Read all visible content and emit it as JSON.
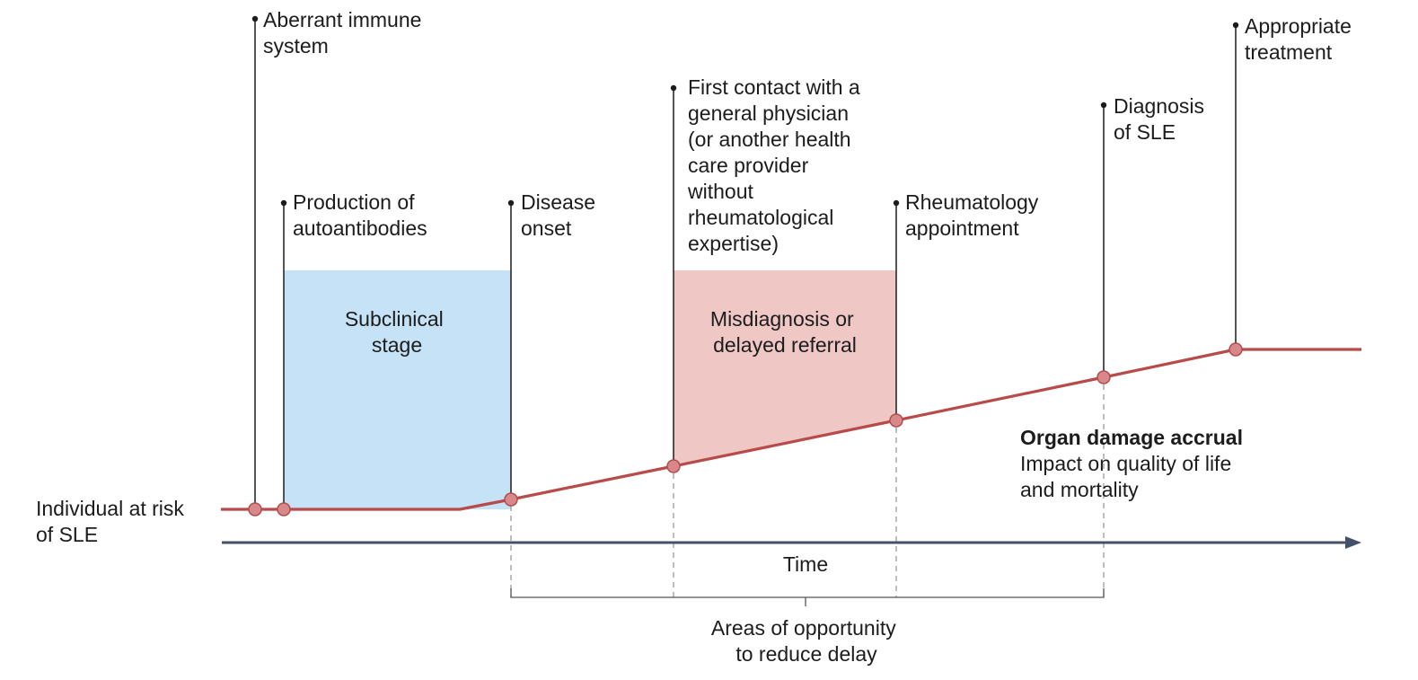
{
  "colors": {
    "subclinical_fill": "#c5e2f6",
    "misdiagnosis_fill": "#efc8c5",
    "progression_line": "#b84a4a",
    "node_fill": "#d9888a",
    "time_axis": "#44506a",
    "text": "#1c1c1c"
  },
  "start_label": [
    "Individual at risk",
    "of SLE"
  ],
  "events": {
    "aberrant": [
      "Aberrant immune",
      "system"
    ],
    "autoantibodies": [
      "Production of",
      "autoantibodies"
    ],
    "onset": [
      "Disease",
      "onset"
    ],
    "first_contact": [
      "First contact with a",
      "general physician",
      "(or another health",
      "care provider",
      "without",
      "rheumatological",
      "expertise)"
    ],
    "rheumatology": [
      "Rheumatology",
      "appointment"
    ],
    "diagnosis": [
      "Diagnosis",
      "of SLE"
    ],
    "treatment": [
      "Appropriate",
      "treatment"
    ]
  },
  "regions": {
    "subclinical": [
      "Subclinical",
      "stage"
    ],
    "misdiagnosis": [
      "Misdiagnosis or",
      "delayed referral"
    ]
  },
  "outcome": {
    "title": "Organ damage accrual",
    "text": [
      "Impact on quality of life",
      "and mortality"
    ]
  },
  "axis": {
    "label": "Time",
    "arrow": "arrow-right-icon"
  },
  "opportunity": {
    "label": [
      "Areas of opportunity",
      "to reduce delay"
    ]
  }
}
